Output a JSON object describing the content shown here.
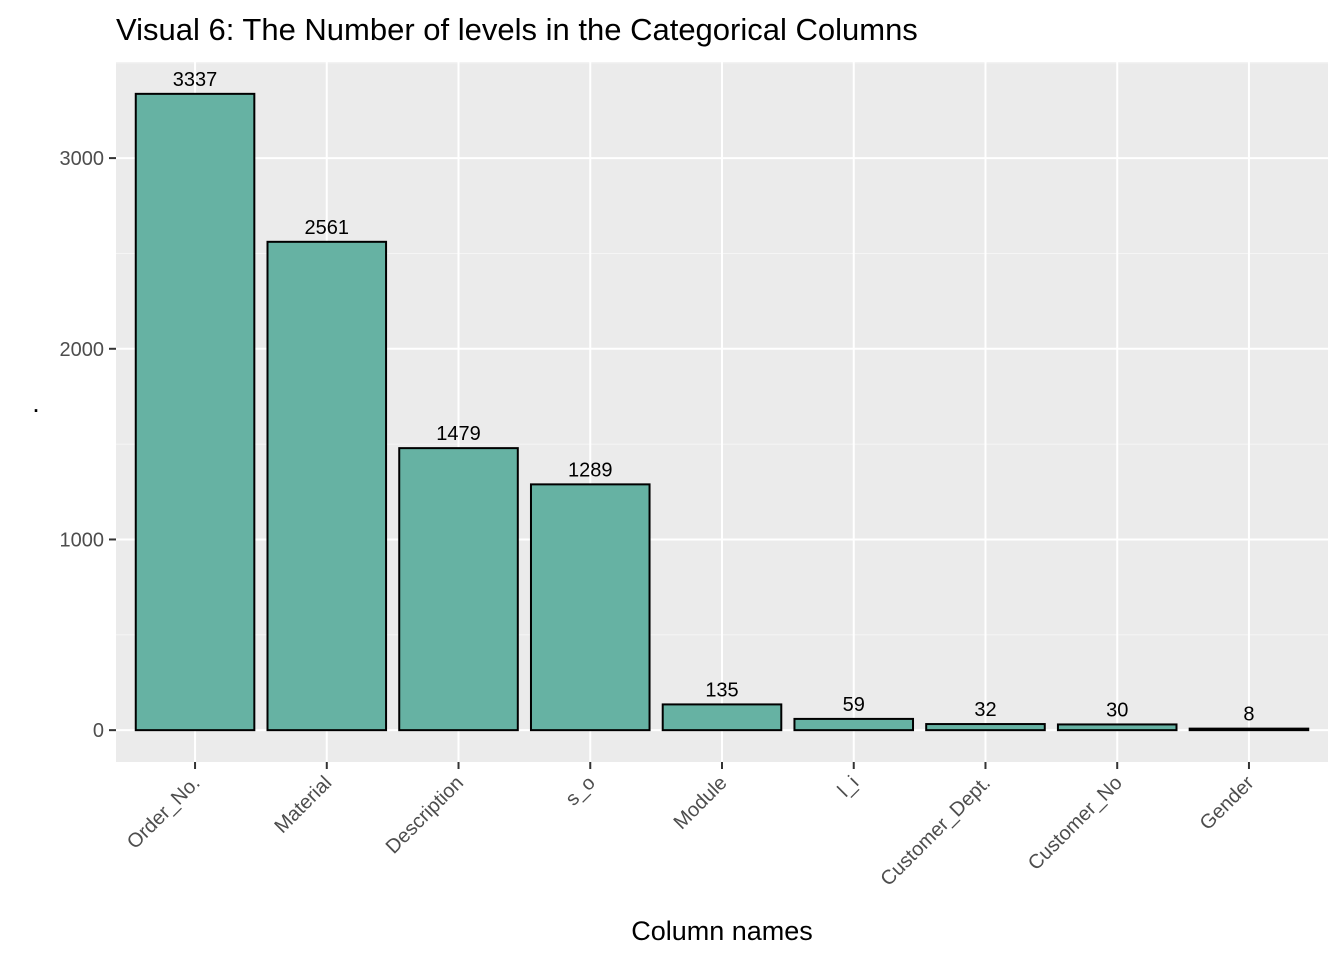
{
  "chart_data": {
    "type": "bar",
    "title": "Visual 6: The Number of levels in the Categorical Columns",
    "xlabel": "Column names",
    "ylabel": ".",
    "categories": [
      "Order_No.",
      "Material",
      "Description",
      "s_o",
      "Module",
      "l_i",
      "Customer_Dept.",
      "Customer_No",
      "Gender"
    ],
    "values": [
      3337,
      2561,
      1479,
      1289,
      135,
      59,
      32,
      30,
      8
    ],
    "data_labels": [
      "3337",
      "2561",
      "1479",
      "1289",
      "135",
      "59",
      "32",
      "30",
      "8"
    ],
    "y_ticks": [
      0,
      1000,
      2000,
      3000
    ],
    "y_tick_labels": [
      "0",
      "1000",
      "2000",
      "3000"
    ],
    "ylim": [
      -167,
      3504
    ],
    "grid": true,
    "legend": "none",
    "colors": {
      "bar_fill": "#66b2a3",
      "bar_outline": "#000000",
      "panel_background": "#ebebeb",
      "grid_major": "#ffffff",
      "grid_minor": "#f5f5f5"
    }
  }
}
